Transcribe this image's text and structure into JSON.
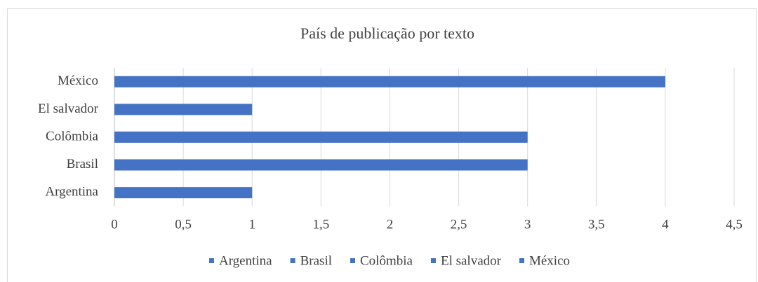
{
  "chart_data": {
    "type": "bar",
    "orientation": "horizontal",
    "title": "País de publicação por texto",
    "categories": [
      "Argentina",
      "Brasil",
      "Colômbia",
      "El salvador",
      "México"
    ],
    "values": [
      1,
      3,
      3,
      1,
      4
    ],
    "color": "#4472c4",
    "xlim": [
      0,
      4.5
    ],
    "xticks": [
      0,
      {
        "value": 0.5,
        "label": "0,5"
      },
      1,
      {
        "value": 1.5,
        "label": "1,5"
      },
      2,
      {
        "value": 2.5,
        "label": "2,5"
      },
      3,
      {
        "value": 3.5,
        "label": "3,5"
      },
      4,
      {
        "value": 4.5,
        "label": "4,5"
      }
    ],
    "grid": true,
    "legend": "bottom"
  }
}
